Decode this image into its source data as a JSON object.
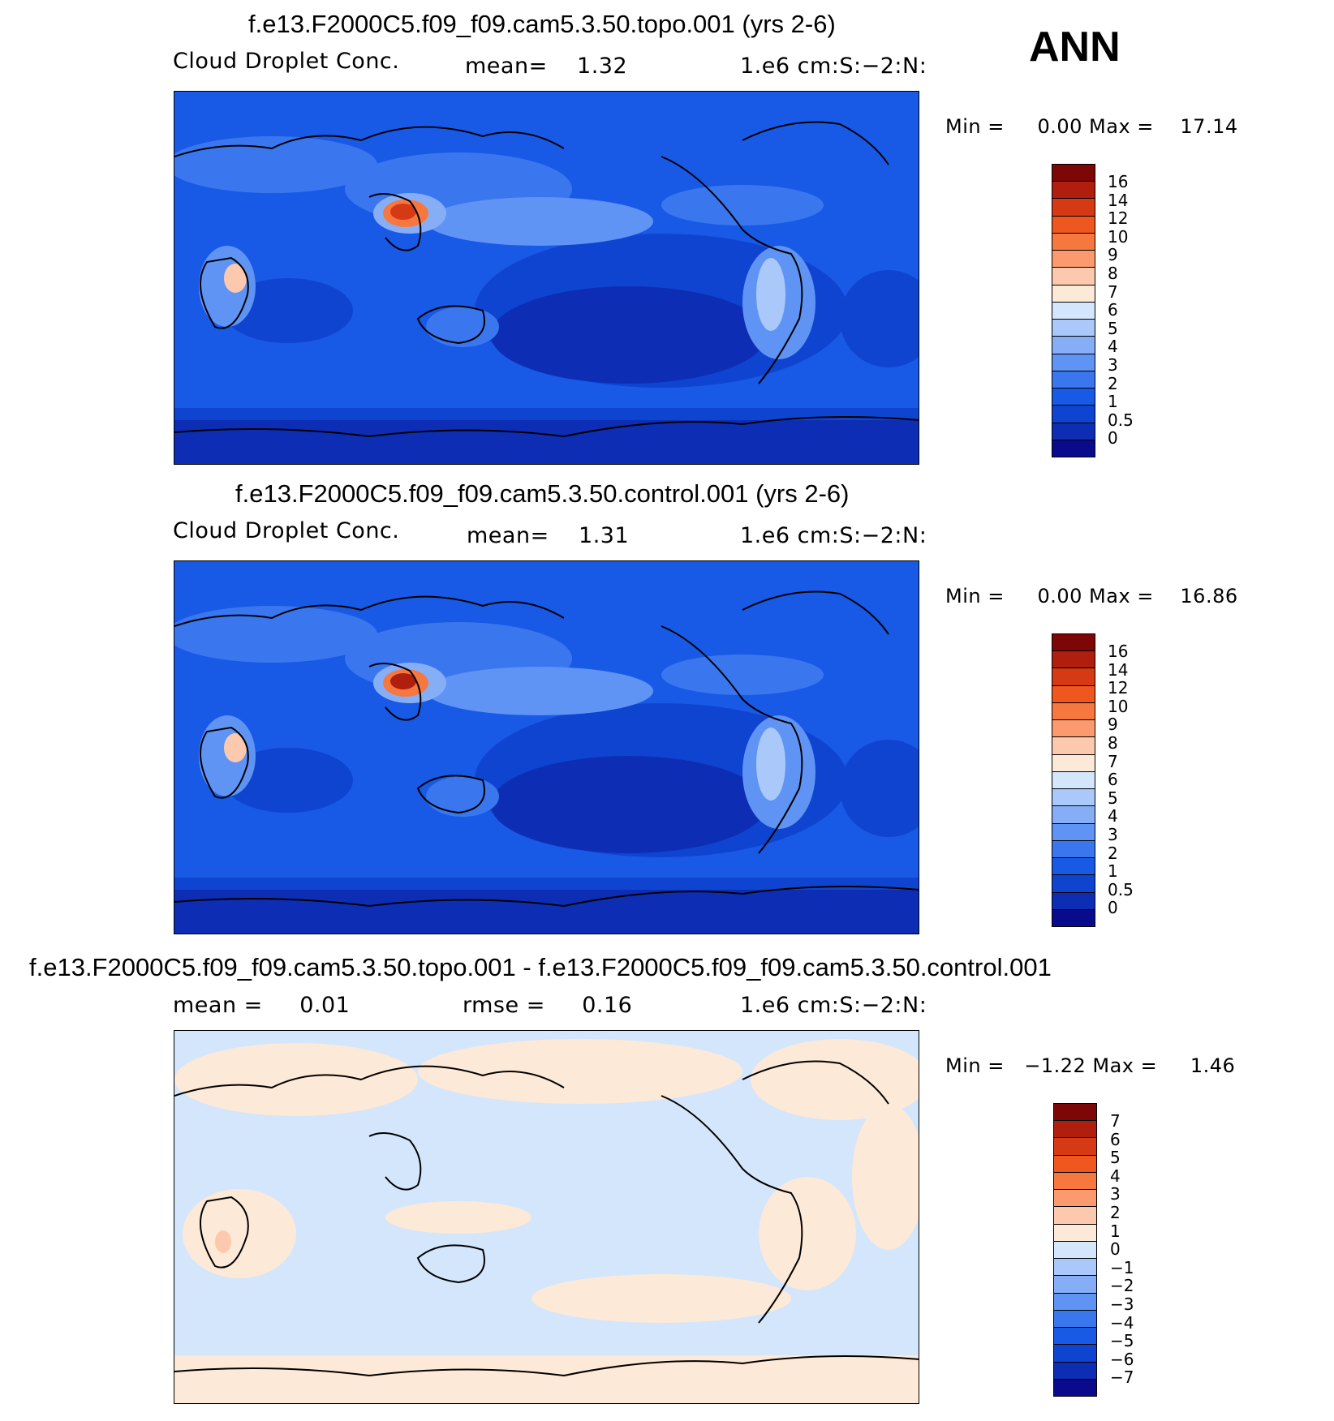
{
  "season": "ANN",
  "panels": [
    {
      "title": "f.e13.F2000C5.f09_f09.cam5.3.50.topo.001 (yrs 2-6)",
      "left_label": "Cloud Droplet Conc.",
      "center_label": "mean=    1.32",
      "right_label": "1.e6 cm:S:−2:N:",
      "minmax": "Min =     0.00 Max =    17.14",
      "colorbar_colors": [
        "#0a0a8c",
        "#0d2eb4",
        "#0f44d0",
        "#1859e6",
        "#3a77ef",
        "#5f93f4",
        "#86aef7",
        "#aac8fa",
        "#d4e6fc",
        "#fde9d7",
        "#fcc9ae",
        "#fb9a6e",
        "#f7783f",
        "#f0571f",
        "#d63a14",
        "#b01f0e",
        "#7d0707"
      ],
      "colorbar_labels": [
        "16",
        "14",
        "12",
        "10",
        "9",
        "8",
        "7",
        "6",
        "5",
        "4",
        "3",
        "2",
        "1",
        "0.5",
        "0"
      ]
    },
    {
      "title": "f.e13.F2000C5.f09_f09.cam5.3.50.control.001 (yrs 2-6)",
      "left_label": "Cloud Droplet Conc.",
      "center_label": "mean=    1.31",
      "right_label": "1.e6 cm:S:−2:N:",
      "minmax": "Min =     0.00 Max =    16.86",
      "colorbar_colors": [
        "#0a0a8c",
        "#0d2eb4",
        "#0f44d0",
        "#1859e6",
        "#3a77ef",
        "#5f93f4",
        "#86aef7",
        "#aac8fa",
        "#d4e6fc",
        "#fde9d7",
        "#fcc9ae",
        "#fb9a6e",
        "#f7783f",
        "#f0571f",
        "#d63a14",
        "#b01f0e",
        "#7d0707"
      ],
      "colorbar_labels": [
        "16",
        "14",
        "12",
        "10",
        "9",
        "8",
        "7",
        "6",
        "5",
        "4",
        "3",
        "2",
        "1",
        "0.5",
        "0"
      ]
    },
    {
      "title": "f.e13.F2000C5.f09_f09.cam5.3.50.topo.001 - f.e13.F2000C5.f09_f09.cam5.3.50.control.001",
      "left_label": "mean =     0.01",
      "center_label": "rmse =     0.16",
      "right_label": "1.e6 cm:S:−2:N:",
      "minmax": "Min =   −1.22 Max =     1.46",
      "colorbar_colors": [
        "#0a0a8c",
        "#0d2eb4",
        "#0f44d0",
        "#1859e6",
        "#3a77ef",
        "#5f93f4",
        "#86aef7",
        "#aac8fa",
        "#d4e6fc",
        "#fde9d7",
        "#fcc9ae",
        "#fb9a6e",
        "#f7783f",
        "#f0571f",
        "#d63a14",
        "#b01f0e",
        "#7d0707"
      ],
      "colorbar_labels": [
        "7",
        "6",
        "5",
        "4",
        "3",
        "2",
        "1",
        "0",
        "−1",
        "−2",
        "−3",
        "−4",
        "−5",
        "−6",
        "−7"
      ]
    }
  ]
}
